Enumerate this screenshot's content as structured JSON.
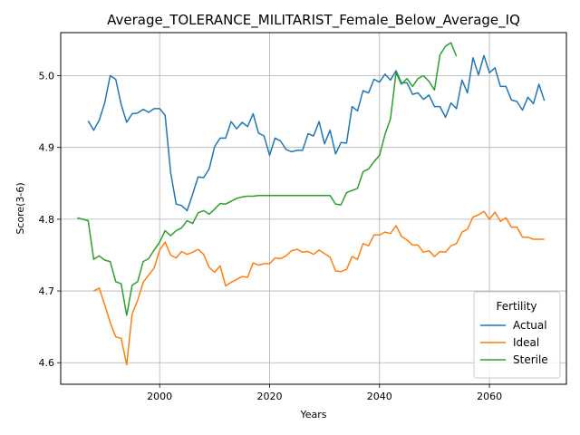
{
  "chart_data": {
    "type": "line",
    "title": "Average_TOLERANCE_MILITARIST_Female_Below_Average_IQ",
    "xlabel": "Years",
    "ylabel": "Score(3-6)",
    "xlim": [
      1982,
      2074
    ],
    "ylim": [
      4.57,
      5.06
    ],
    "xticks": [
      2000,
      2020,
      2040,
      2060
    ],
    "yticks": [
      4.6,
      4.7,
      4.8,
      4.9,
      5.0
    ],
    "xtick_labels": [
      "2000",
      "2020",
      "2040",
      "2060"
    ],
    "ytick_labels": [
      "4.6",
      "4.7",
      "4.8",
      "4.9",
      "5.0"
    ],
    "grid": true,
    "legend": {
      "title": "Fertility",
      "placement": "lower-right"
    },
    "series": [
      {
        "name": "Actual",
        "color": "#1f77b4",
        "x": [
          1987,
          1988,
          1989,
          1990,
          1991,
          1992,
          1993,
          1994,
          1995,
          1996,
          1997,
          1998,
          1999,
          2000,
          2001,
          2002,
          2003,
          2004,
          2005,
          2006,
          2007,
          2008,
          2009,
          2010,
          2011,
          2012,
          2013,
          2014,
          2015,
          2016,
          2017,
          2018,
          2019,
          2020,
          2021,
          2022,
          2023,
          2024,
          2025,
          2026,
          2027,
          2028,
          2029,
          2030,
          2031,
          2032,
          2033,
          2034,
          2035,
          2036,
          2037,
          2038,
          2039,
          2040,
          2041,
          2042,
          2043,
          2044,
          2045,
          2046,
          2047,
          2048,
          2049,
          2050,
          2051,
          2052,
          2053,
          2054,
          2055,
          2056,
          2057,
          2058,
          2059,
          2060,
          2061,
          2062,
          2063,
          2064,
          2065,
          2066,
          2067,
          2068,
          2069,
          2070
        ],
        "values": [
          4.937,
          4.924,
          4.938,
          4.962,
          5.0,
          4.995,
          4.96,
          4.935,
          4.947,
          4.948,
          4.953,
          4.949,
          4.954,
          4.954,
          4.945,
          4.865,
          4.821,
          4.819,
          4.812,
          4.835,
          4.859,
          4.858,
          4.87,
          4.901,
          4.913,
          4.913,
          4.936,
          4.926,
          4.935,
          4.929,
          4.947,
          4.92,
          4.916,
          4.889,
          4.913,
          4.909,
          4.897,
          4.894,
          4.896,
          4.896,
          4.919,
          4.916,
          4.936,
          4.905,
          4.924,
          4.891,
          4.907,
          4.906,
          4.957,
          4.951,
          4.979,
          4.976,
          4.995,
          4.991,
          5.002,
          4.994,
          5.007,
          4.99,
          4.99,
          4.974,
          4.976,
          4.967,
          4.973,
          4.957,
          4.957,
          4.942,
          4.962,
          4.954,
          4.994,
          4.976,
          5.025,
          5.001,
          5.028,
          5.004,
          5.011,
          4.985,
          4.985,
          4.966,
          4.964,
          4.952,
          4.97,
          4.961,
          4.988,
          4.965
        ]
      },
      {
        "name": "Ideal",
        "color": "#ff7f0e",
        "x": [
          1988,
          1989,
          1990,
          1991,
          1992,
          1993,
          1994,
          1995,
          1996,
          1997,
          1998,
          1999,
          2000,
          2001,
          2002,
          2003,
          2004,
          2005,
          2006,
          2007,
          2008,
          2009,
          2010,
          2011,
          2012,
          2013,
          2014,
          2015,
          2016,
          2017,
          2018,
          2019,
          2020,
          2021,
          2022,
          2023,
          2024,
          2025,
          2026,
          2027,
          2028,
          2029,
          2030,
          2031,
          2032,
          2033,
          2034,
          2035,
          2036,
          2037,
          2038,
          2039,
          2040,
          2041,
          2042,
          2043,
          2044,
          2045,
          2046,
          2047,
          2048,
          2049,
          2050,
          2051,
          2052,
          2053,
          2054,
          2055,
          2056,
          2057,
          2058,
          2059,
          2060,
          2061,
          2062,
          2063,
          2064,
          2065,
          2066,
          2067,
          2068,
          2069,
          2070
        ],
        "values": [
          4.7,
          4.704,
          4.681,
          4.656,
          4.636,
          4.634,
          4.597,
          4.668,
          4.687,
          4.712,
          4.722,
          4.732,
          4.757,
          4.768,
          4.75,
          4.746,
          4.755,
          4.751,
          4.754,
          4.758,
          4.751,
          4.733,
          4.726,
          4.735,
          4.707,
          4.712,
          4.716,
          4.72,
          4.719,
          4.739,
          4.736,
          4.738,
          4.738,
          4.746,
          4.745,
          4.749,
          4.756,
          4.758,
          4.754,
          4.755,
          4.751,
          4.757,
          4.752,
          4.747,
          4.728,
          4.727,
          4.73,
          4.748,
          4.744,
          4.766,
          4.763,
          4.778,
          4.778,
          4.782,
          4.78,
          4.791,
          4.776,
          4.771,
          4.764,
          4.764,
          4.754,
          4.756,
          4.748,
          4.755,
          4.754,
          4.763,
          4.766,
          4.782,
          4.786,
          4.803,
          4.806,
          4.811,
          4.8,
          4.81,
          4.797,
          4.802,
          4.789,
          4.789,
          4.775,
          4.775,
          4.772,
          4.772,
          4.772
        ]
      },
      {
        "name": "Sterile",
        "color": "#2ca02c",
        "x": [
          1985,
          1986,
          1987,
          1988,
          1989,
          1990,
          1991,
          1992,
          1993,
          1994,
          1995,
          1996,
          1997,
          1998,
          1999,
          2000,
          2001,
          2002,
          2003,
          2004,
          2005,
          2006,
          2007,
          2008,
          2009,
          2010,
          2011,
          2012,
          2013,
          2014,
          2015,
          2016,
          2017,
          2018,
          2019,
          2020,
          2021,
          2022,
          2023,
          2024,
          2025,
          2026,
          2027,
          2028,
          2029,
          2030,
          2031,
          2032,
          2033,
          2034,
          2035,
          2036,
          2037,
          2038,
          2039,
          2040,
          2041,
          2042,
          2043,
          2044,
          2045,
          2046,
          2047,
          2048,
          2049,
          2050,
          2051,
          2052,
          2053,
          2054
        ],
        "values": [
          4.802,
          4.8,
          4.798,
          4.744,
          4.749,
          4.743,
          4.741,
          4.713,
          4.71,
          4.666,
          4.708,
          4.713,
          4.741,
          4.745,
          4.757,
          4.768,
          4.784,
          4.777,
          4.784,
          4.788,
          4.798,
          4.794,
          4.809,
          4.812,
          4.807,
          4.814,
          4.822,
          4.821,
          4.825,
          4.829,
          4.831,
          4.832,
          4.832,
          4.833,
          4.833,
          4.833,
          4.833,
          4.833,
          4.833,
          4.833,
          4.833,
          4.833,
          4.833,
          4.833,
          4.833,
          4.833,
          4.833,
          4.821,
          4.82,
          4.837,
          4.84,
          4.843,
          4.866,
          4.87,
          4.88,
          4.889,
          4.918,
          4.94,
          5.004,
          4.988,
          4.996,
          4.985,
          4.996,
          5.0,
          4.992,
          4.98,
          5.029,
          5.041,
          5.046,
          5.027
        ]
      }
    ]
  }
}
